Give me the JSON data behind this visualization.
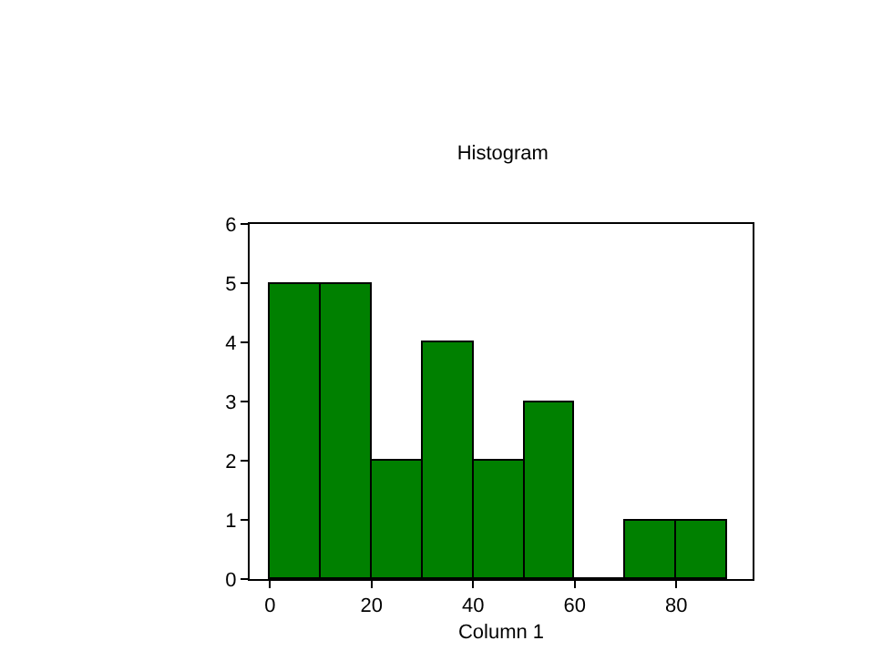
{
  "chart_data": {
    "type": "histogram",
    "title": "Histogram",
    "xlabel": "Column 1",
    "bins": [
      0,
      10,
      20,
      30,
      40,
      50,
      60,
      70,
      80,
      90
    ],
    "values": [
      5,
      5,
      2,
      4,
      2,
      3,
      0,
      1,
      1
    ],
    "color": "#008000",
    "xlim": [
      -4,
      95
    ],
    "xticks": [
      0,
      20,
      40,
      60,
      80
    ],
    "ylim": [
      0,
      6
    ],
    "yticks": [
      0,
      1,
      2,
      3,
      4,
      5,
      6
    ]
  }
}
